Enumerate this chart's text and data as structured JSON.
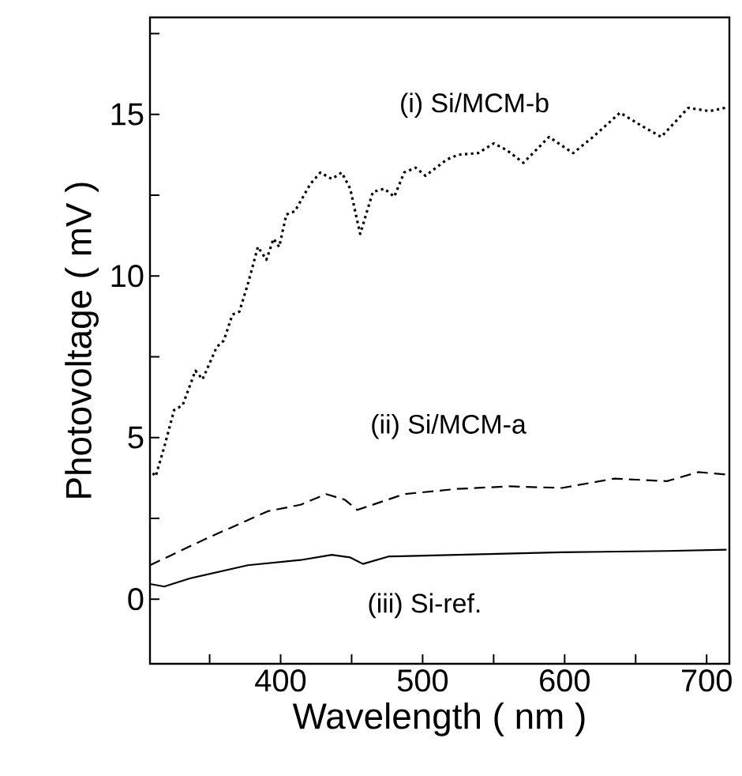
{
  "chart_data": {
    "type": "line",
    "xlabel": "Wavelength ( nm )",
    "ylabel": "Photovoltage ( mV )",
    "xlim": [
      308,
      716
    ],
    "ylim": [
      -2,
      18
    ],
    "xticks": [
      {
        "value": 350,
        "label": null
      },
      400,
      {
        "value": 450,
        "label": null
      },
      500,
      {
        "value": 550,
        "label": null
      },
      600,
      {
        "value": 650,
        "label": null
      },
      700
    ],
    "yticks": [
      0,
      {
        "value": 2.5,
        "label": null
      },
      5,
      {
        "value": 7.5,
        "label": null
      },
      10,
      {
        "value": 12.5,
        "label": null
      },
      15,
      {
        "value": 17.5,
        "label": null
      }
    ],
    "grid": false,
    "marker": "none",
    "series": [
      {
        "name": "(i) Si/MCM-b",
        "color": "#000000",
        "line_style": "dotted",
        "x": [
          310,
          312,
          318,
          325,
          331,
          340,
          345,
          355,
          360,
          366,
          371,
          377,
          384,
          390,
          395,
          399,
          404,
          410,
          421,
          428,
          436,
          443,
          449,
          456,
          465,
          473,
          480,
          487,
          495,
          502,
          517,
          525,
          539,
          550,
          559,
          571,
          589,
          606,
          620,
          639,
          654,
          668,
          687,
          702,
          713
        ],
        "values": [
          3.9,
          3.8,
          4.7,
          5.85,
          6.0,
          7.07,
          6.8,
          7.8,
          8.0,
          8.8,
          8.9,
          9.76,
          10.9,
          10.5,
          11.15,
          10.9,
          11.9,
          12.0,
          12.85,
          13.2,
          13.0,
          13.2,
          12.7,
          11.3,
          12.6,
          12.7,
          12.45,
          13.2,
          13.35,
          13.1,
          13.6,
          13.75,
          13.8,
          14.1,
          13.9,
          13.5,
          14.3,
          13.8,
          14.3,
          15.05,
          14.65,
          14.3,
          15.2,
          15.1,
          15.2
        ]
      },
      {
        "name": "(ii) Si/MCM-a",
        "color": "#000000",
        "line_style": "dashed",
        "x": [
          308,
          347,
          391,
          414,
          432,
          445,
          454,
          487,
          524,
          561,
          598,
          635,
          672,
          694,
          713
        ],
        "values": [
          1.05,
          1.86,
          2.72,
          2.92,
          3.25,
          3.08,
          2.76,
          3.25,
          3.41,
          3.49,
          3.44,
          3.73,
          3.65,
          3.93,
          3.86
        ]
      },
      {
        "name": "(iii) Si-ref.",
        "color": "#000000",
        "line_style": "solid",
        "x": [
          308,
          318,
          336,
          377,
          414,
          436,
          449,
          458,
          476,
          524,
          598,
          672,
          714
        ],
        "values": [
          0.47,
          0.39,
          0.64,
          1.05,
          1.21,
          1.37,
          1.29,
          1.09,
          1.32,
          1.37,
          1.45,
          1.49,
          1.53
        ]
      }
    ]
  }
}
